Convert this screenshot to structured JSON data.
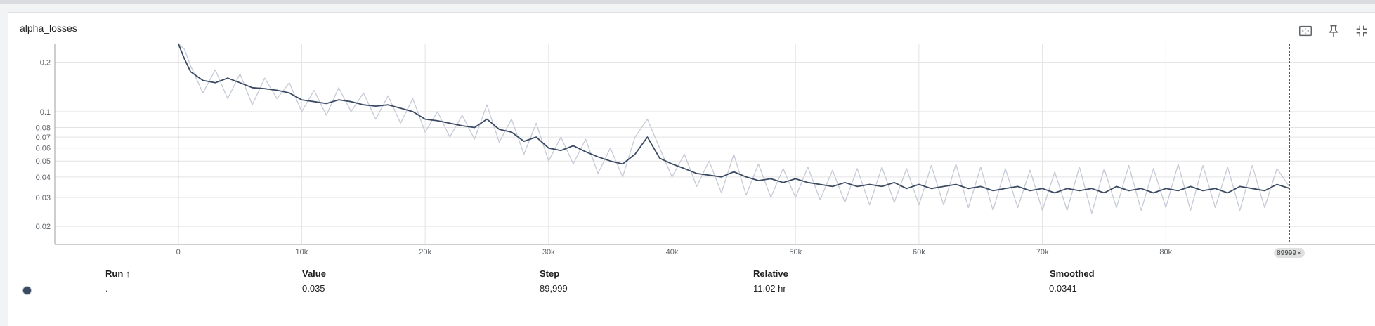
{
  "card": {
    "title": "alpha_losses",
    "toolbar": {
      "fit_icon": "fit-to-domain-icon",
      "pin_icon": "pin-icon",
      "collapse_icon": "collapse-icon"
    }
  },
  "chart_data": {
    "type": "line",
    "title": "alpha_losses",
    "xlabel": "",
    "ylabel": "",
    "x_scale": "linear",
    "y_scale": "log",
    "xlim": [
      -10000,
      97000
    ],
    "ylim": [
      0.0155,
      0.26
    ],
    "grid": true,
    "x_ticks": [
      0,
      10000,
      20000,
      30000,
      40000,
      50000,
      60000,
      70000,
      80000
    ],
    "x_tick_labels": [
      "0",
      "10k",
      "20k",
      "30k",
      "40k",
      "50k",
      "60k",
      "70k",
      "80k"
    ],
    "y_ticks": [
      0.02,
      0.03,
      0.04,
      0.05,
      0.06,
      0.07,
      0.08,
      0.1,
      0.2
    ],
    "y_tick_labels": [
      "0.02",
      "0.03",
      "0.04",
      "0.05",
      "0.06",
      "0.07",
      "0.08",
      "0.1",
      "0.2"
    ],
    "series": [
      {
        "role": "smoothed",
        "color": "#3a4a63",
        "x": [
          0,
          500,
          1000,
          2000,
          3000,
          4000,
          5000,
          6000,
          7000,
          8000,
          9000,
          10000,
          11000,
          12000,
          13000,
          14000,
          15000,
          16000,
          17000,
          18000,
          19000,
          20000,
          21000,
          22000,
          23000,
          24000,
          25000,
          26000,
          27000,
          28000,
          29000,
          30000,
          31000,
          32000,
          33000,
          34000,
          35000,
          36000,
          37000,
          38000,
          39000,
          40000,
          41000,
          42000,
          43000,
          44000,
          45000,
          46000,
          47000,
          48000,
          49000,
          50000,
          51000,
          52000,
          53000,
          54000,
          55000,
          56000,
          57000,
          58000,
          59000,
          60000,
          61000,
          62000,
          63000,
          64000,
          65000,
          66000,
          67000,
          68000,
          69000,
          70000,
          71000,
          72000,
          73000,
          74000,
          75000,
          76000,
          77000,
          78000,
          79000,
          80000,
          81000,
          82000,
          83000,
          84000,
          85000,
          86000,
          87000,
          88000,
          89000,
          89999
        ],
        "y": [
          0.26,
          0.21,
          0.175,
          0.155,
          0.15,
          0.16,
          0.15,
          0.14,
          0.138,
          0.135,
          0.13,
          0.118,
          0.115,
          0.112,
          0.118,
          0.115,
          0.11,
          0.108,
          0.11,
          0.105,
          0.1,
          0.09,
          0.088,
          0.085,
          0.082,
          0.08,
          0.09,
          0.078,
          0.075,
          0.066,
          0.07,
          0.06,
          0.058,
          0.062,
          0.057,
          0.053,
          0.05,
          0.048,
          0.055,
          0.07,
          0.052,
          0.048,
          0.045,
          0.042,
          0.041,
          0.04,
          0.043,
          0.04,
          0.038,
          0.039,
          0.037,
          0.039,
          0.037,
          0.036,
          0.035,
          0.037,
          0.035,
          0.036,
          0.035,
          0.037,
          0.034,
          0.036,
          0.034,
          0.035,
          0.036,
          0.034,
          0.035,
          0.033,
          0.034,
          0.035,
          0.033,
          0.034,
          0.032,
          0.034,
          0.033,
          0.034,
          0.032,
          0.035,
          0.033,
          0.034,
          0.032,
          0.034,
          0.033,
          0.035,
          0.033,
          0.034,
          0.032,
          0.035,
          0.034,
          0.033,
          0.036,
          0.0341
        ]
      },
      {
        "role": "raw",
        "color": "#c5cad6",
        "x": [
          0,
          500,
          1000,
          2000,
          3000,
          4000,
          5000,
          6000,
          7000,
          8000,
          9000,
          10000,
          11000,
          12000,
          13000,
          14000,
          15000,
          16000,
          17000,
          18000,
          19000,
          20000,
          21000,
          22000,
          23000,
          24000,
          25000,
          26000,
          27000,
          28000,
          29000,
          30000,
          31000,
          32000,
          33000,
          34000,
          35000,
          36000,
          37000,
          38000,
          39000,
          40000,
          41000,
          42000,
          43000,
          44000,
          45000,
          46000,
          47000,
          48000,
          49000,
          50000,
          51000,
          52000,
          53000,
          54000,
          55000,
          56000,
          57000,
          58000,
          59000,
          60000,
          61000,
          62000,
          63000,
          64000,
          65000,
          66000,
          67000,
          68000,
          69000,
          70000,
          71000,
          72000,
          73000,
          74000,
          75000,
          76000,
          77000,
          78000,
          79000,
          80000,
          81000,
          82000,
          83000,
          84000,
          85000,
          86000,
          87000,
          88000,
          89000,
          89999
        ],
        "y": [
          0.26,
          0.24,
          0.19,
          0.13,
          0.18,
          0.12,
          0.17,
          0.11,
          0.16,
          0.12,
          0.15,
          0.1,
          0.135,
          0.095,
          0.14,
          0.1,
          0.13,
          0.09,
          0.125,
          0.085,
          0.12,
          0.075,
          0.1,
          0.07,
          0.095,
          0.068,
          0.11,
          0.065,
          0.09,
          0.055,
          0.085,
          0.05,
          0.07,
          0.048,
          0.068,
          0.042,
          0.06,
          0.04,
          0.07,
          0.09,
          0.06,
          0.04,
          0.055,
          0.035,
          0.05,
          0.032,
          0.055,
          0.031,
          0.048,
          0.03,
          0.045,
          0.03,
          0.046,
          0.029,
          0.044,
          0.028,
          0.045,
          0.027,
          0.046,
          0.028,
          0.045,
          0.027,
          0.047,
          0.027,
          0.048,
          0.026,
          0.046,
          0.025,
          0.045,
          0.026,
          0.044,
          0.025,
          0.043,
          0.025,
          0.046,
          0.024,
          0.045,
          0.026,
          0.047,
          0.025,
          0.045,
          0.026,
          0.048,
          0.025,
          0.047,
          0.026,
          0.046,
          0.025,
          0.047,
          0.026,
          0.045,
          0.035
        ]
      }
    ],
    "hover_step_label": "89999"
  },
  "table": {
    "headers": {
      "run": "Run ↑",
      "value": "Value",
      "step": "Step",
      "relative": "Relative",
      "smoothed": "Smoothed"
    },
    "row": {
      "run": ".",
      "value": "0.035",
      "step": "89,999",
      "relative": "11.02 hr",
      "smoothed": "0.0341",
      "color": "#3a4a63"
    }
  }
}
